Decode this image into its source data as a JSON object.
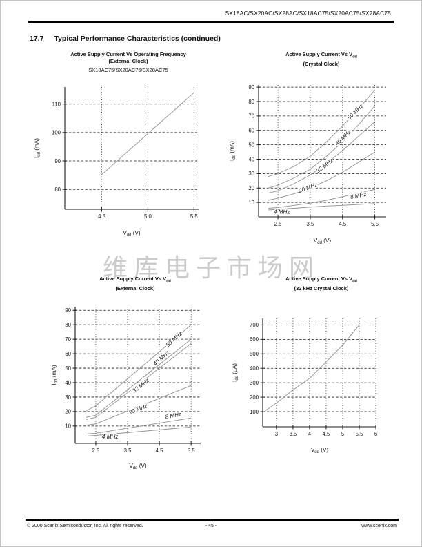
{
  "page": {
    "header_title": "SX18AC/SX20AC/SX28AC/SX18AC75/SX20AC75/SX28AC75",
    "section_number": "17.7",
    "section_title": "Typical Performance Characteristics (continued)",
    "watermark": "维库电子市场网",
    "footer": {
      "copyright": "© 2000 Scenix Semiconductor, Inc. All rights reserved.",
      "page_number": "- 45 -",
      "website": "www.scenix.com"
    }
  },
  "chart_data": [
    {
      "id": "supply-current-vs-frequency-external-clock",
      "type": "line",
      "title_lines": [
        [
          {
            "t": "Active Supply Current Vs Operating Frequency"
          }
        ],
        [
          {
            "t": "(External Clock)"
          }
        ]
      ],
      "subtitle": "SX18AC75/SX20AC75/SX28AC75",
      "xlabel": [
        {
          "t": "V"
        },
        {
          "sub": "dd"
        },
        {
          "t": " (V)"
        }
      ],
      "ylabel": [
        {
          "t": "I"
        },
        {
          "sub": "dd"
        },
        {
          "t": " (mA)"
        }
      ],
      "x": {
        "min": 4.1,
        "max": 5.55,
        "ticks": [
          4.5,
          5.0,
          5.5
        ],
        "labels": [
          "4.5",
          "5.0",
          "5.5"
        ]
      },
      "y": {
        "min": 73,
        "max": 116,
        "ticks": [
          80,
          90,
          100,
          110
        ]
      },
      "grid": true,
      "legend": "none",
      "series": [
        {
          "name": "Idd",
          "points": [
            [
              4.5,
              85.2
            ],
            [
              5.5,
              114
            ]
          ],
          "label": null
        }
      ]
    },
    {
      "id": "supply-current-vs-vdd-crystal-clock",
      "type": "line",
      "title_lines": [
        [
          {
            "t": "Active Supply Current Vs V"
          },
          {
            "sub": "dd"
          }
        ],
        [
          {
            "t": "(Crystal Clock)"
          }
        ]
      ],
      "subtitle": null,
      "xlabel": [
        {
          "t": "V"
        },
        {
          "sub": "dd"
        },
        {
          "t": " (V)"
        }
      ],
      "ylabel": [
        {
          "t": "I"
        },
        {
          "sub": "dd"
        },
        {
          "t": " (mA)"
        }
      ],
      "x": {
        "min": 1.9,
        "max": 5.85,
        "ticks": [
          2.5,
          3.5,
          4.5,
          5.5
        ],
        "labels": [
          "2.5",
          "3.5",
          "4.5",
          "5.5"
        ]
      },
      "y": {
        "min": 0,
        "max": 91.5,
        "ticks": [
          10,
          20,
          30,
          40,
          50,
          60,
          70,
          80,
          90
        ]
      },
      "grid": true,
      "legend": "inline-curve-labels",
      "series": [
        {
          "name": "50 MHz",
          "points": [
            [
              2.2,
              28
            ],
            [
              2.5,
              30
            ],
            [
              3,
              35
            ],
            [
              3.5,
              42
            ],
            [
              4,
              52
            ],
            [
              4.5,
              63
            ],
            [
              5,
              75
            ],
            [
              5.5,
              88
            ]
          ],
          "label": {
            "x": 4.93,
            "y": 72,
            "rot": -44
          }
        },
        {
          "name": "40 MHz",
          "points": [
            [
              2.2,
              20
            ],
            [
              2.5,
              22
            ],
            [
              3,
              27
            ],
            [
              3.5,
              33
            ],
            [
              4,
              42
            ],
            [
              4.5,
              52
            ],
            [
              5,
              64
            ],
            [
              5.5,
              77
            ]
          ],
          "label": {
            "x": 4.55,
            "y": 54,
            "rot": -44
          }
        },
        {
          "name": "32 MHz",
          "points": [
            [
              2.2,
              16.5
            ],
            [
              2.5,
              18
            ],
            [
              3,
              23
            ],
            [
              3.5,
              29
            ],
            [
              4,
              37
            ],
            [
              4.5,
              46
            ],
            [
              5,
              56
            ],
            [
              5.5,
              66
            ]
          ],
          "label": {
            "x": 3.98,
            "y": 34.5,
            "rot": -38
          }
        },
        {
          "name": "20 MHz",
          "points": [
            [
              2.2,
              11.5
            ],
            [
              2.5,
              13
            ],
            [
              3,
              16
            ],
            [
              3.5,
              20
            ],
            [
              4,
              25
            ],
            [
              4.5,
              31
            ],
            [
              5,
              38
            ],
            [
              5.5,
              45
            ]
          ],
          "label": {
            "x": 3.45,
            "y": 19,
            "rot": -20
          }
        },
        {
          "name": "8 MHz",
          "points": [
            [
              2.2,
              6
            ],
            [
              2.5,
              6.5
            ],
            [
              3,
              8
            ],
            [
              3.5,
              9.5
            ],
            [
              4,
              11.5
            ],
            [
              4.5,
              14
            ],
            [
              5,
              16.5
            ],
            [
              5.5,
              19
            ]
          ],
          "label": {
            "x": 5.0,
            "y": 13.5,
            "rot": -11
          }
        },
        {
          "name": "4 MHz",
          "points": [
            [
              2.2,
              4.8
            ],
            [
              2.5,
              5.2
            ],
            [
              3,
              6
            ],
            [
              3.5,
              6.8
            ],
            [
              4,
              7.5
            ],
            [
              4.5,
              8
            ],
            [
              5,
              8.6
            ],
            [
              5.5,
              9.2
            ]
          ],
          "label": {
            "x": 2.62,
            "y": 2.2,
            "rot": 0
          }
        }
      ]
    },
    {
      "id": "supply-current-vs-vdd-external-clock",
      "type": "line",
      "title_lines": [
        [
          {
            "t": "Active Supply Current Vs V"
          },
          {
            "sub": "dd"
          }
        ],
        [
          {
            "t": "(External Clock)"
          }
        ]
      ],
      "subtitle": null,
      "xlabel": [
        {
          "t": "V"
        },
        {
          "sub": "dd"
        },
        {
          "t": " (V)"
        }
      ],
      "ylabel": [
        {
          "t": "I"
        },
        {
          "sub": "dd"
        },
        {
          "t": " (mA)"
        }
      ],
      "x": {
        "min": 1.85,
        "max": 5.8,
        "ticks": [
          2.5,
          3.5,
          4.5,
          5.5
        ],
        "labels": [
          "2.5",
          "3.5",
          "4.5",
          "5.5"
        ]
      },
      "y": {
        "min": -2,
        "max": 92.5,
        "ticks": [
          10,
          20,
          30,
          40,
          50,
          60,
          70,
          80,
          90
        ]
      },
      "grid": true,
      "legend": "inline-curve-labels",
      "series": [
        {
          "name": "50 MHz",
          "points": [
            [
              2.2,
              20.5
            ],
            [
              2.5,
              24
            ],
            [
              5.5,
              80
            ]
          ],
          "label": {
            "x": 5.0,
            "y": 69,
            "rot": -42
          }
        },
        {
          "name": "40 MHz",
          "points": [
            [
              2.2,
              16
            ],
            [
              2.5,
              17.5
            ],
            [
              5.5,
              70
            ]
          ],
          "label": {
            "x": 4.6,
            "y": 56,
            "rot": -42
          }
        },
        {
          "name": "32 MHz",
          "points": [
            [
              2.2,
              14.5
            ],
            [
              2.5,
              16
            ],
            [
              5.5,
              67
            ]
          ],
          "label": {
            "x": 3.95,
            "y": 37,
            "rot": -38
          }
        },
        {
          "name": "20 MHz",
          "points": [
            [
              2.2,
              10.5
            ],
            [
              2.5,
              11.5
            ],
            [
              5.5,
              38
            ]
          ],
          "label": {
            "x": 3.85,
            "y": 20.5,
            "rot": -22
          }
        },
        {
          "name": "8 MHz",
          "points": [
            [
              2.2,
              4.5
            ],
            [
              2.5,
              5
            ],
            [
              5.5,
              15.5
            ]
          ],
          "label": {
            "x": 4.95,
            "y": 16,
            "rot": -11
          }
        },
        {
          "name": "4 MHz",
          "points": [
            [
              2.2,
              3
            ],
            [
              2.5,
              3.5
            ],
            [
              5.5,
              9.3
            ]
          ],
          "label": {
            "x": 2.95,
            "y": 1.4,
            "rot": 0
          }
        }
      ]
    },
    {
      "id": "supply-current-vs-vdd-32khz-crystal-clock",
      "type": "line",
      "title_lines": [
        [
          {
            "t": "Active Supply Current Vs V"
          },
          {
            "sub": "dd"
          }
        ],
        [
          {
            "t": "(32 kHz Crystal Clock)"
          }
        ]
      ],
      "subtitle": null,
      "xlabel": [
        {
          "t": "V"
        },
        {
          "sub": "dd"
        },
        {
          "t": " (V)"
        }
      ],
      "ylabel": [
        {
          "t": "I"
        },
        {
          "sub": "dd"
        },
        {
          "t": " (µA)"
        }
      ],
      "x": {
        "min": 2.586,
        "max": 6.02,
        "ticks": [
          3,
          3.5,
          4,
          4.5,
          5,
          5.5,
          6
        ],
        "labels": [
          "3",
          "3.5",
          "4",
          "4.5",
          "5",
          "5.5",
          "6"
        ]
      },
      "y": {
        "min": -5,
        "max": 745,
        "ticks": [
          100,
          200,
          300,
          400,
          500,
          600,
          700
        ]
      },
      "grid": true,
      "legend": "none",
      "series": [
        {
          "name": "Idd",
          "points": [
            [
              2.59,
              95
            ],
            [
              3,
              160
            ],
            [
              3.5,
              250
            ],
            [
              4,
              330
            ],
            [
              4.5,
              445
            ],
            [
              5,
              560
            ],
            [
              5.5,
              700
            ]
          ],
          "label": null
        }
      ]
    }
  ]
}
